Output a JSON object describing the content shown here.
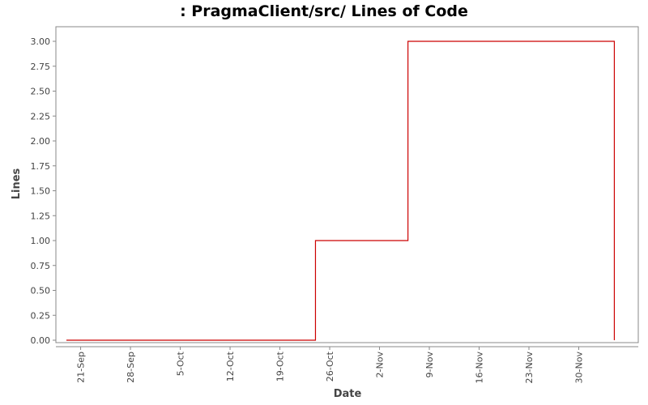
{
  "chart_data": {
    "type": "line",
    "step": true,
    "title": ": PragmaClient/src/ Lines of Code",
    "xlabel": "Date",
    "ylabel": "Lines",
    "x_ticks": [
      "21-Sep",
      "28-Sep",
      "5-Oct",
      "12-Oct",
      "19-Oct",
      "26-Oct",
      "2-Nov",
      "9-Nov",
      "16-Nov",
      "23-Nov",
      "30-Nov"
    ],
    "x_tick_dates": [
      "2008-09-21",
      "2008-09-28",
      "2008-10-05",
      "2008-10-12",
      "2008-10-19",
      "2008-10-26",
      "2008-11-02",
      "2008-11-09",
      "2008-11-16",
      "2008-11-23",
      "2008-11-30"
    ],
    "x_range": [
      "2008-09-19",
      "2008-12-07"
    ],
    "ylim": [
      0,
      3.1
    ],
    "y_ticks": [
      "0.00",
      "0.25",
      "0.50",
      "0.75",
      "1.00",
      "1.25",
      "1.50",
      "1.75",
      "2.00",
      "2.25",
      "2.50",
      "2.75",
      "3.00"
    ],
    "grid": false,
    "legend": "none",
    "line_color": "#cc0000",
    "series": [
      {
        "points": [
          {
            "x": "2008-09-19",
            "y": 0
          },
          {
            "x": "2008-10-24",
            "y": 1
          },
          {
            "x": "2008-11-06",
            "y": 3
          },
          {
            "x": "2008-12-05",
            "y": 0
          }
        ]
      }
    ]
  }
}
